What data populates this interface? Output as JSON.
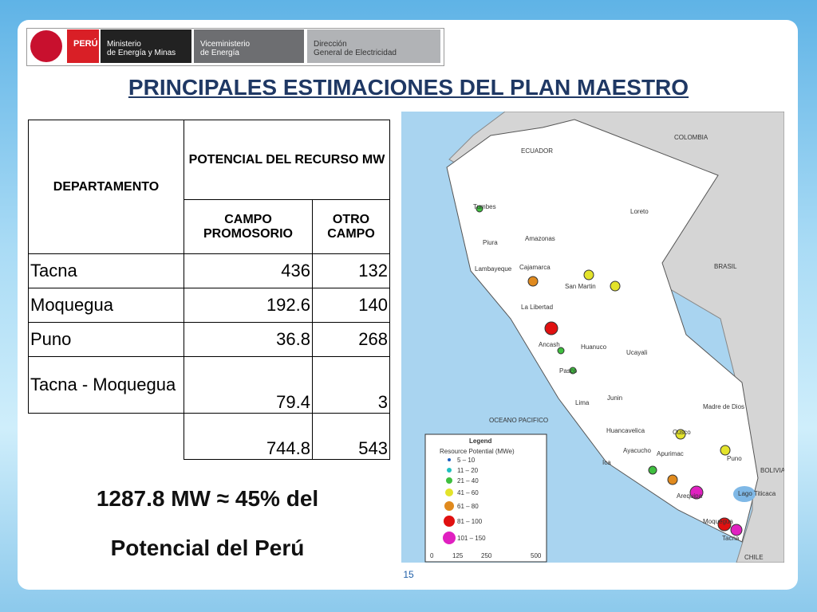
{
  "header": {
    "logos": [
      "PERÚ",
      "Ministerio",
      "de Energía y Minas",
      "Viceministerio",
      "de Energía",
      "Dirección",
      "General de Electricidad"
    ]
  },
  "title": "PRINCIPALES ESTIMACIONES DEL PLAN MAESTRO",
  "table": {
    "col_department": "DEPARTAMENTO",
    "col_group": "POTENCIAL DEL RECURSO MW",
    "col_campo": "CAMPO PROMOSORIO",
    "col_otro": "OTRO CAMPO",
    "rows": [
      {
        "name": "Tacna",
        "campo": "436",
        "otro": "132"
      },
      {
        "name": "Moquegua",
        "campo": "192.6",
        "otro": "140"
      },
      {
        "name": "Puno",
        "campo": "36.8",
        "otro": "268"
      },
      {
        "name": "Tacna - Moquegua",
        "campo": "79.4",
        "otro": "3"
      },
      {
        "campo": "744.8",
        "otro": "543"
      }
    ]
  },
  "summary": [
    "1287.8 MW ≈ 45% del",
    "Potencial del Perú"
  ],
  "map": {
    "labels": [
      "ECUADOR",
      "COLOMBIA",
      "BRASIL",
      "BOLIVIA",
      "CHILE",
      "OCEANO PACIFICO",
      "Loreto",
      "Amazonas",
      "Tumbes",
      "Piura",
      "Lambayeque",
      "Cajamarca",
      "San Martin",
      "La Libertad",
      "Ancash",
      "Huanuco",
      "Ucayali",
      "Pasco",
      "Lima",
      "Junin",
      "Huancavelica",
      "Ica",
      "Ayacucho",
      "Apurimac",
      "Cusco",
      "Madre de Dios",
      "Puno",
      "Arequipa",
      "Moquegua",
      "Tacna",
      "Lago Titicaca"
    ],
    "legend": {
      "title": "Legend",
      "subtitle": "Resource Potential (MWe)",
      "items": [
        "5 – 10",
        "11 – 20",
        "21 – 40",
        "41 – 60",
        "61 – 80",
        "81 – 100",
        "101 – 150"
      ],
      "scale": [
        "0",
        "125",
        "250",
        "500"
      ]
    }
  },
  "page_number": "15"
}
